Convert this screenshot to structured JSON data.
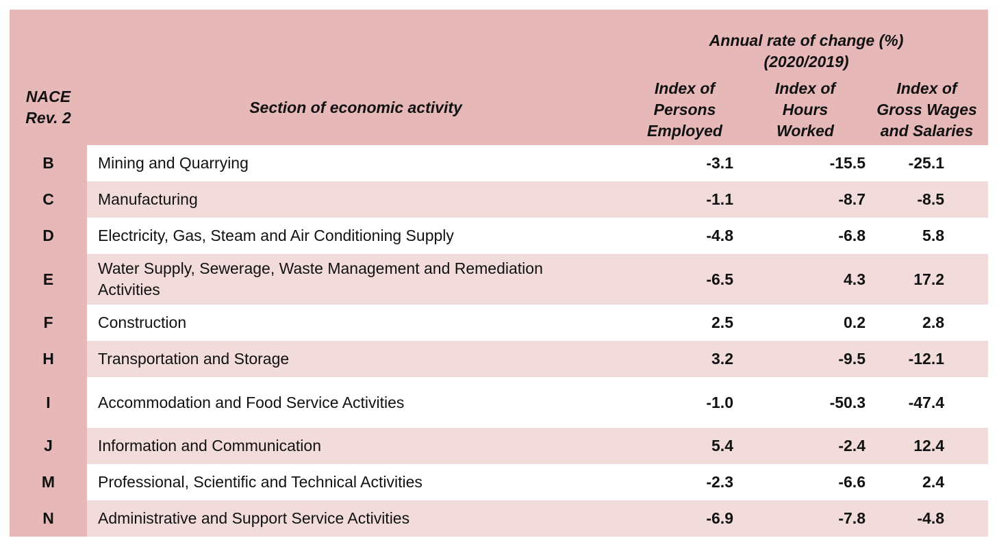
{
  "header": {
    "code_label": "NACE Rev. 2",
    "code_label_line1": "NACE",
    "code_label_line2": "Rev. 2",
    "section_label": "Section of economic activity",
    "group_label_line1": "Annual rate of change (%)",
    "group_label_line2": "(2020/2019)",
    "persons": [
      "Index of",
      "Persons",
      "Employed"
    ],
    "hours": [
      "Index of",
      "Hours",
      "Worked"
    ],
    "wages": [
      "Index of",
      "Gross Wages",
      "and Salaries"
    ]
  },
  "rows": [
    {
      "code": "B",
      "section": "Mining and Quarrying",
      "persons": "-3.1",
      "hours": "-15.5",
      "wages": "-25.1"
    },
    {
      "code": "C",
      "section": "Manufacturing",
      "persons": "-1.1",
      "hours": "-8.7",
      "wages": "-8.5"
    },
    {
      "code": "D",
      "section": "Electricity, Gas, Steam and Air Conditioning Supply",
      "persons": "-4.8",
      "hours": "-6.8",
      "wages": "5.8"
    },
    {
      "code": "E",
      "section": "Water Supply, Sewerage, Waste Management and Remediation Activities",
      "persons": "-6.5",
      "hours": "4.3",
      "wages": "17.2"
    },
    {
      "code": "F",
      "section": "Construction",
      "persons": "2.5",
      "hours": "0.2",
      "wages": "2.8"
    },
    {
      "code": "H",
      "section": "Transportation and Storage",
      "persons": "3.2",
      "hours": "-9.5",
      "wages": "-12.1"
    },
    {
      "code": "I",
      "section": "Accommodation and Food Service Activities",
      "persons": "-1.0",
      "hours": "-50.3",
      "wages": "-47.4"
    },
    {
      "code": "J",
      "section": "Information and Communication",
      "persons": "5.4",
      "hours": "-2.4",
      "wages": "12.4"
    },
    {
      "code": "M",
      "section": "Professional, Scientific and Technical Activities",
      "persons": "-2.3",
      "hours": "-6.6",
      "wages": "2.4"
    },
    {
      "code": "N",
      "section": "Administrative and Support Service Activities",
      "persons": "-6.9",
      "hours": "-7.8",
      "wages": "-4.8"
    }
  ],
  "colors": {
    "header_bg": "#e6b8b8",
    "row_alt_bg": "#f2dcdb",
    "row_bg": "#ffffff"
  }
}
